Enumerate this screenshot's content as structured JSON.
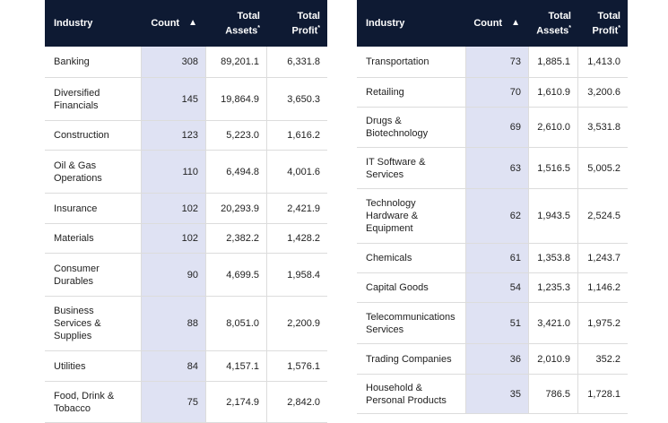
{
  "tables": [
    {
      "header": {
        "industry": "Industry",
        "count": "Count",
        "assets": {
          "label": "Total Assets",
          "note": "*"
        },
        "profit": {
          "label": "Total Profit",
          "note": "*"
        }
      },
      "rows": [
        {
          "industry": [
            "Banking"
          ],
          "count": 308,
          "assets": "89,201.1",
          "profit": "6,331.8"
        },
        {
          "industry": [
            "Diversified",
            "Financials"
          ],
          "count": 145,
          "assets": "19,864.9",
          "profit": "3,650.3"
        },
        {
          "industry": [
            "Construction"
          ],
          "count": 123,
          "assets": "5,223.0",
          "profit": "1,616.2"
        },
        {
          "industry": [
            "Oil & Gas",
            "Operations"
          ],
          "count": 110,
          "assets": "6,494.8",
          "profit": "4,001.6"
        },
        {
          "industry": [
            "Insurance"
          ],
          "count": 102,
          "assets": "20,293.9",
          "profit": "2,421.9"
        },
        {
          "industry": [
            "Materials"
          ],
          "count": 102,
          "assets": "2,382.2",
          "profit": "1,428.2"
        },
        {
          "industry": [
            "Consumer",
            "Durables"
          ],
          "count": 90,
          "assets": "4,699.5",
          "profit": "1,958.4"
        },
        {
          "industry": [
            "Business",
            "Services &",
            "Supplies"
          ],
          "count": 88,
          "assets": "8,051.0",
          "profit": "2,200.9"
        },
        {
          "industry": [
            "Utilities"
          ],
          "count": 84,
          "assets": "4,157.1",
          "profit": "1,576.1"
        },
        {
          "industry": [
            "Food, Drink &",
            "Tobacco"
          ],
          "count": 75,
          "assets": "2,174.9",
          "profit": "2,842.0"
        }
      ]
    },
    {
      "header": {
        "industry": "Industry",
        "count": "Count",
        "assets": {
          "label": "Total Assets",
          "note": "*"
        },
        "profit": {
          "label": "Total Profit",
          "note": "*"
        }
      },
      "rows": [
        {
          "industry": [
            "Transportation"
          ],
          "count": 73,
          "assets": "1,885.1",
          "profit": "1,413.0"
        },
        {
          "industry": [
            "Retailing"
          ],
          "count": 70,
          "assets": "1,610.9",
          "profit": "3,200.6"
        },
        {
          "industry": [
            "Drugs &",
            "Biotechnology"
          ],
          "count": 69,
          "assets": "2,610.0",
          "profit": "3,531.8"
        },
        {
          "industry": [
            "IT Software &",
            "Services"
          ],
          "count": 63,
          "assets": "1,516.5",
          "profit": "5,005.2"
        },
        {
          "industry": [
            "Technology",
            "Hardware &",
            "Equipment"
          ],
          "count": 62,
          "assets": "1,943.5",
          "profit": "2,524.5"
        },
        {
          "industry": [
            "Chemicals"
          ],
          "count": 61,
          "assets": "1,353.8",
          "profit": "1,243.7"
        },
        {
          "industry": [
            "Capital Goods"
          ],
          "count": 54,
          "assets": "1,235.3",
          "profit": "1,146.2"
        },
        {
          "industry": [
            "Telecommunications",
            "Services"
          ],
          "count": 51,
          "assets": "3,421.0",
          "profit": "1,975.2"
        },
        {
          "industry": [
            "Trading Companies"
          ],
          "count": 36,
          "assets": "2,010.9",
          "profit": "352.2"
        },
        {
          "industry": [
            "Household &",
            "Personal Products"
          ],
          "count": 35,
          "assets": "786.5",
          "profit": "1,728.1"
        }
      ]
    }
  ]
}
